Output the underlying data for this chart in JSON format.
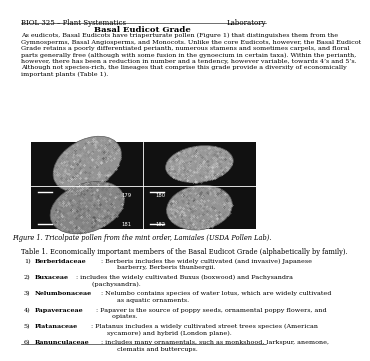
{
  "header_left": "BIOL 325 – Plant Systematics",
  "header_right": "Laboratory",
  "title": "Basal Eudicot Grade",
  "body_text": "As eudicots, Basal Eudicots have triaperturate pollen (Figure 1) that distinguishes them from the\nGymnosperms, Basal Angiosperms, and Monocots. Unlike the core Eudicots, however, the Basal Eudicot\nGrade retains a poorly differentiated perianth, numerous stamens and sometimes carpels, and floral\nparts generally free (although with some fusion in the gynoecium in certain taxa). Within the perianth,\nhowever, there has been a reduction in number and a tendency, however variable, towards 4’s and 5’s.\nAlthough not species-rich, the lineages that comprise this grade provide a diversity of economically\nimportant plants (Table 1).",
  "figure_caption": "Figure 1. Tricolpate pollen from the mint order, Lamiales (USDA Pollen Lab).",
  "table_title": "Table 1. Economically important members of the Basal Eudicot Grade (alphabetically by family).",
  "table_items": [
    {
      "family": "Berberidaceae",
      "rest": ": Berberis includes the widely cultivated (and invasive) Japanese\n        barberry, Berberis thunbergii."
    },
    {
      "family": "Buxaceae",
      "rest": ": includes the widely cultivated Buxus (boxwood) and Pachysandra\n        (pachysandra)."
    },
    {
      "family": "Nelumbonaceae",
      "rest": ": Nelumbo contains species of water lotus, which are widely cultivated\n        as aquatic ornaments."
    },
    {
      "family": "Papaveraceae",
      "rest": ": Papaver is the source of poppy seeds, ornamental poppy flowers, and\n        opiates."
    },
    {
      "family": "Platanaceae",
      "rest": ": Platanus includes a widely cultivated street trees species (American\n        sycamore) and hybrid (London plane)."
    },
    {
      "family": "Ranunculaceae",
      "rest": ": includes many ornamentals, such as monkshood, larkspur, anemone,\n        clematis and buttercups."
    }
  ],
  "bg_color": "#ffffff",
  "text_color": "#000000",
  "header_fontsize": 5.0,
  "title_fontsize": 6.0,
  "body_fontsize": 4.6,
  "caption_fontsize": 4.8,
  "table_fontsize": 4.6
}
